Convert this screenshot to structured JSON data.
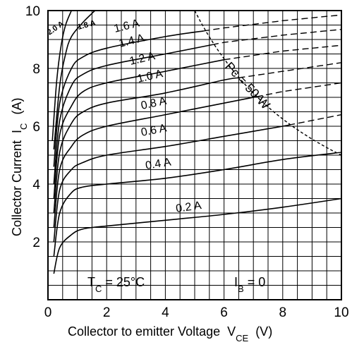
{
  "chart_data": {
    "type": "line",
    "xlabel": "Collector to emitter Voltage",
    "xlabel_sub": "CE",
    "xlabel_unit": "(V)",
    "ylabel": "Collector Current",
    "ylabel_sub": "C",
    "ylabel_unit": "(A)",
    "xlim": [
      0,
      10
    ],
    "ylim": [
      0,
      10
    ],
    "x_ticks": [
      "0",
      "2",
      "4",
      "6",
      "8",
      "10"
    ],
    "y_ticks": [
      "2",
      "4",
      "6",
      "8",
      "10"
    ],
    "grid": true,
    "series": [
      {
        "name": "0.2 A",
        "points": [
          [
            0.2,
            0.9
          ],
          [
            0.4,
            1.8
          ],
          [
            0.8,
            2.25
          ],
          [
            1.2,
            2.45
          ],
          [
            2,
            2.55
          ],
          [
            4,
            2.75
          ],
          [
            6,
            2.95
          ],
          [
            8,
            3.2
          ],
          [
            10,
            3.5
          ]
        ]
      },
      {
        "name": "0.4 A",
        "points": [
          [
            0.2,
            1.5
          ],
          [
            0.4,
            3.0
          ],
          [
            0.8,
            3.7
          ],
          [
            1.2,
            3.9
          ],
          [
            2,
            4.0
          ],
          [
            4,
            4.2
          ],
          [
            6,
            4.5
          ],
          [
            8,
            4.85
          ],
          [
            10,
            5.1
          ]
        ]
      },
      {
        "name": "0.6 A",
        "points": [
          [
            0.2,
            2.0
          ],
          [
            0.4,
            3.8
          ],
          [
            0.8,
            4.5
          ],
          [
            1.2,
            4.75
          ],
          [
            2,
            5.0
          ],
          [
            4,
            5.3
          ],
          [
            6,
            5.65
          ],
          [
            8,
            6.0
          ],
          [
            10,
            6.4
          ]
        ]
      },
      {
        "name": "0.8 A",
        "points": [
          [
            0.2,
            2.5
          ],
          [
            0.4,
            4.5
          ],
          [
            0.8,
            5.3
          ],
          [
            1.2,
            5.7
          ],
          [
            2,
            6.0
          ],
          [
            4,
            6.4
          ],
          [
            6,
            6.8
          ],
          [
            8,
            7.2
          ],
          [
            10,
            7.5
          ]
        ]
      },
      {
        "name": "1.0 A",
        "points": [
          [
            0.2,
            3.0
          ],
          [
            0.4,
            5.1
          ],
          [
            0.8,
            6.1
          ],
          [
            1.2,
            6.5
          ],
          [
            2,
            6.8
          ],
          [
            4,
            7.15
          ],
          [
            6,
            7.6
          ],
          [
            8,
            7.9
          ],
          [
            10,
            8.2
          ]
        ]
      },
      {
        "name": "1.2 A",
        "points": [
          [
            0.2,
            3.5
          ],
          [
            0.4,
            5.7
          ],
          [
            0.8,
            6.7
          ],
          [
            1.2,
            7.2
          ],
          [
            2,
            7.5
          ],
          [
            4,
            7.9
          ],
          [
            6,
            8.3
          ],
          [
            8,
            8.6
          ],
          [
            10,
            8.8
          ]
        ]
      },
      {
        "name": "1.4 A",
        "points": [
          [
            0.2,
            4.0
          ],
          [
            0.4,
            6.2
          ],
          [
            0.8,
            7.4
          ],
          [
            1.2,
            7.8
          ],
          [
            2,
            8.1
          ],
          [
            4,
            8.5
          ],
          [
            6,
            8.9
          ],
          [
            8,
            9.15
          ],
          [
            10,
            9.35
          ]
        ]
      },
      {
        "name": "1.6 A",
        "points": [
          [
            0.2,
            4.6
          ],
          [
            0.4,
            6.8
          ],
          [
            0.8,
            8.0
          ],
          [
            1.2,
            8.4
          ],
          [
            2,
            8.7
          ],
          [
            4,
            9.1
          ],
          [
            6,
            9.4
          ],
          [
            8,
            9.65
          ],
          [
            10,
            9.85
          ]
        ]
      },
      {
        "name": "1.8 A",
        "points": [
          [
            0.2,
            5.2
          ],
          [
            0.4,
            7.4
          ],
          [
            0.6,
            8.5
          ],
          [
            0.8,
            9.1
          ],
          [
            1.2,
            9.6
          ],
          [
            1.6,
            10.0
          ]
        ]
      },
      {
        "name": "2.0 A",
        "points": [
          [
            0.15,
            5.5
          ],
          [
            0.3,
            7.6
          ],
          [
            0.45,
            8.8
          ],
          [
            0.6,
            9.5
          ],
          [
            0.8,
            10.0
          ]
        ]
      }
    ],
    "pc_curve": {
      "name": "Pc = 50 W",
      "power_w": 50,
      "x_range": [
        5,
        10
      ],
      "style": "dashed"
    },
    "annotations": {
      "tc": "T",
      "tc_sub": "C",
      "tc_value": " = 25°C",
      "ib": "I",
      "ib_sub": "B",
      "ib_value": " = 0"
    }
  }
}
